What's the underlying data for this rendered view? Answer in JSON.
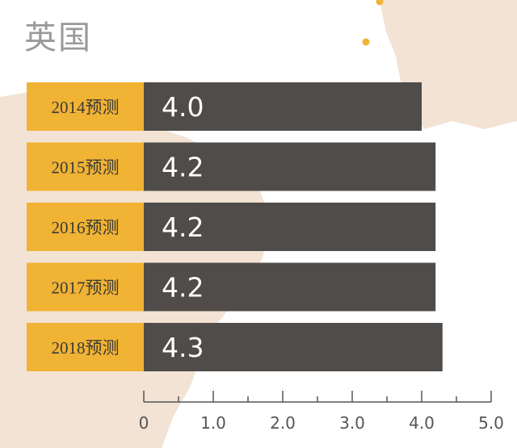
{
  "chart_data": {
    "type": "bar",
    "orientation": "horizontal",
    "title": "英国",
    "categories": [
      "2014预测",
      "2015预测",
      "2016预测",
      "2017预测",
      "2018预测"
    ],
    "values": [
      4.0,
      4.2,
      4.2,
      4.2,
      4.3
    ],
    "value_labels": [
      "4.0",
      "4.2",
      "4.2",
      "4.2",
      "4.3"
    ],
    "xlim": [
      0,
      5.0
    ],
    "x_ticks": [
      0,
      1.0,
      2.0,
      3.0,
      4.0,
      5.0
    ],
    "x_tick_labels": [
      "0",
      "1.0",
      "2.0",
      "3.0",
      "4.0",
      "5.0"
    ],
    "grid": false,
    "legend": "none",
    "colors": {
      "bar": "#4f4c4a",
      "label_box": "#f0b333",
      "map_land": "#f3e3d4",
      "map_dot": "#f0b333",
      "title": "#9a9a9a"
    }
  }
}
